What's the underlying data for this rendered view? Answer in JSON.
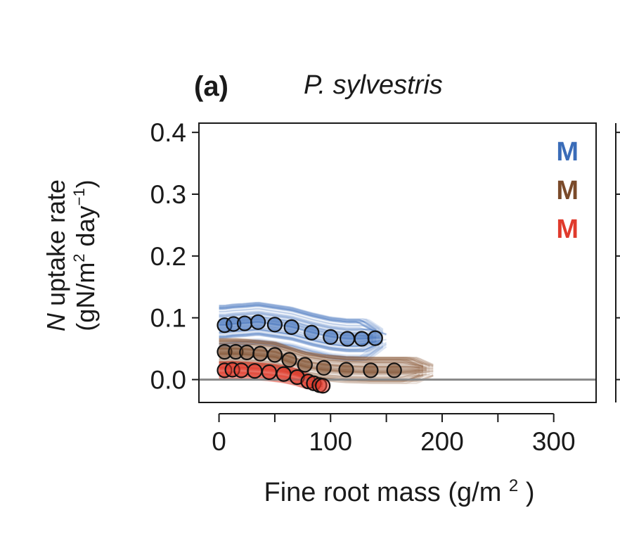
{
  "panel": {
    "label": "(a)",
    "species": "P. sylvestris"
  },
  "chart_data": {
    "type": "scatter",
    "title": "P. sylvestris",
    "xlabel": "Fine root mass",
    "xlabel_unit": "(g/m",
    "xlabel_unit_sup": "2",
    "xlabel_unit_close": ")",
    "ylabel_line1_italic": "N",
    "ylabel_line1_rest": " uptake rate",
    "ylabel_line2_a": "(gN/m",
    "ylabel_line2_sup1": "2",
    "ylabel_line2_b": " day",
    "ylabel_line2_sup2": "−1",
    "ylabel_line2_c": ")",
    "xlim": [
      -18,
      338
    ],
    "ylim": [
      -0.037,
      0.415
    ],
    "xticks": [
      0,
      50,
      100,
      150,
      200,
      250,
      300
    ],
    "xtick_labels": [
      "0",
      "",
      "100",
      "",
      "200",
      "",
      "300"
    ],
    "yticks": [
      0.0,
      0.1,
      0.2,
      0.3,
      0.4
    ],
    "ytick_labels": [
      "0.0",
      "0.1",
      "0.2",
      "0.3",
      "0.4"
    ],
    "reference_line_y": 0.0,
    "legend": {
      "position": "top-right",
      "entries": [
        {
          "label": "M",
          "color": "#3a6cb8"
        },
        {
          "label": "M",
          "color": "#7a4a2a"
        },
        {
          "label": "M",
          "color": "#e03a2c"
        }
      ]
    },
    "series": [
      {
        "name": "blue",
        "color": "#3a6cb8",
        "band_color": "#3f6fbd",
        "band": {
          "x_start": 0,
          "x_end": 152,
          "half_width": 0.035
        },
        "points": [
          {
            "x": 5,
            "y": 0.088
          },
          {
            "x": 13,
            "y": 0.09
          },
          {
            "x": 23,
            "y": 0.091
          },
          {
            "x": 35,
            "y": 0.093
          },
          {
            "x": 50,
            "y": 0.089
          },
          {
            "x": 65,
            "y": 0.085
          },
          {
            "x": 83,
            "y": 0.076
          },
          {
            "x": 100,
            "y": 0.069
          },
          {
            "x": 115,
            "y": 0.066
          },
          {
            "x": 128,
            "y": 0.066
          },
          {
            "x": 140,
            "y": 0.067
          }
        ]
      },
      {
        "name": "brown",
        "color": "#7a4a2a",
        "band_color": "#8a5a35",
        "band": {
          "x_start": 0,
          "x_end": 195,
          "half_width": 0.022
        },
        "points": [
          {
            "x": 5,
            "y": 0.045
          },
          {
            "x": 15,
            "y": 0.045
          },
          {
            "x": 25,
            "y": 0.044
          },
          {
            "x": 37,
            "y": 0.042
          },
          {
            "x": 50,
            "y": 0.04
          },
          {
            "x": 63,
            "y": 0.032
          },
          {
            "x": 77,
            "y": 0.024
          },
          {
            "x": 94,
            "y": 0.019
          },
          {
            "x": 114,
            "y": 0.016
          },
          {
            "x": 136,
            "y": 0.015
          },
          {
            "x": 157,
            "y": 0.015
          }
        ]
      },
      {
        "name": "red",
        "color": "#e03a2c",
        "band_color": "#e04030",
        "band": {
          "x_start": 0,
          "x_end": 95,
          "half_width": 0.014
        },
        "points": [
          {
            "x": 5,
            "y": 0.015
          },
          {
            "x": 12,
            "y": 0.016
          },
          {
            "x": 20,
            "y": 0.015
          },
          {
            "x": 32,
            "y": 0.014
          },
          {
            "x": 45,
            "y": 0.012
          },
          {
            "x": 58,
            "y": 0.009
          },
          {
            "x": 70,
            "y": 0.004
          },
          {
            "x": 80,
            "y": -0.003
          },
          {
            "x": 85,
            "y": -0.006
          },
          {
            "x": 90,
            "y": -0.009
          },
          {
            "x": 93,
            "y": -0.01
          }
        ]
      }
    ]
  }
}
